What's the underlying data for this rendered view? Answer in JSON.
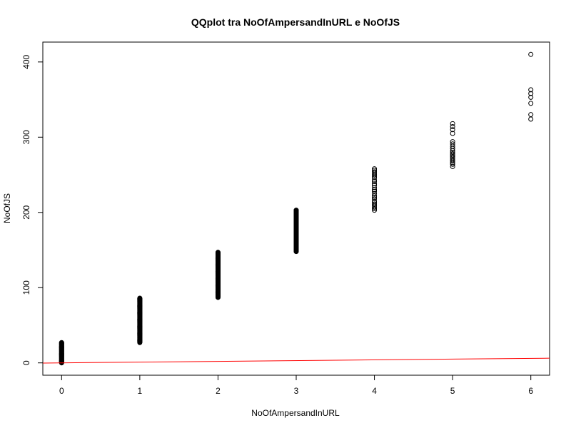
{
  "chart_data": {
    "type": "scatter",
    "title": "QQplot tra NoOfAmpersandInURL e NoOfJS",
    "xlabel": "NoOfAmpersandInURL",
    "ylabel": "NoOfJS",
    "xlim": [
      -0.24,
      6.24
    ],
    "ylim": [
      -16.4,
      426.4
    ],
    "xticks": [
      0,
      1,
      2,
      3,
      4,
      5,
      6
    ],
    "yticks": [
      0,
      100,
      200,
      300,
      400
    ],
    "grid": false,
    "legend": "none",
    "point_color": "#000000",
    "line_color": "#ff0000",
    "series": [
      {
        "x": 0,
        "y_min": 0,
        "y_max": 27,
        "dense": true
      },
      {
        "x": 1,
        "y_min": 27,
        "y_max": 86,
        "dense": true
      },
      {
        "x": 2,
        "y_min": 87,
        "y_max": 147,
        "dense": true
      },
      {
        "x": 3,
        "y_min": 148,
        "y_max": 203,
        "dense": true
      },
      {
        "x": 4,
        "y_values": [
          203,
          205,
          207,
          209,
          211,
          213,
          215,
          218,
          220,
          222,
          225,
          228,
          230,
          233,
          236,
          238,
          241,
          243,
          246,
          248,
          250,
          252,
          254,
          256,
          258
        ]
      },
      {
        "x": 5,
        "y_values": [
          261,
          264,
          266,
          268,
          270,
          272,
          274,
          276,
          278,
          280,
          282,
          285,
          288,
          291,
          294,
          305,
          310,
          314,
          318
        ]
      },
      {
        "x": 6,
        "y_values": [
          324,
          330,
          345,
          353,
          358,
          363,
          410
        ]
      }
    ],
    "reference_line": {
      "x": [
        -0.24,
        6.24
      ],
      "y": [
        -0.24,
        6.24
      ]
    }
  }
}
